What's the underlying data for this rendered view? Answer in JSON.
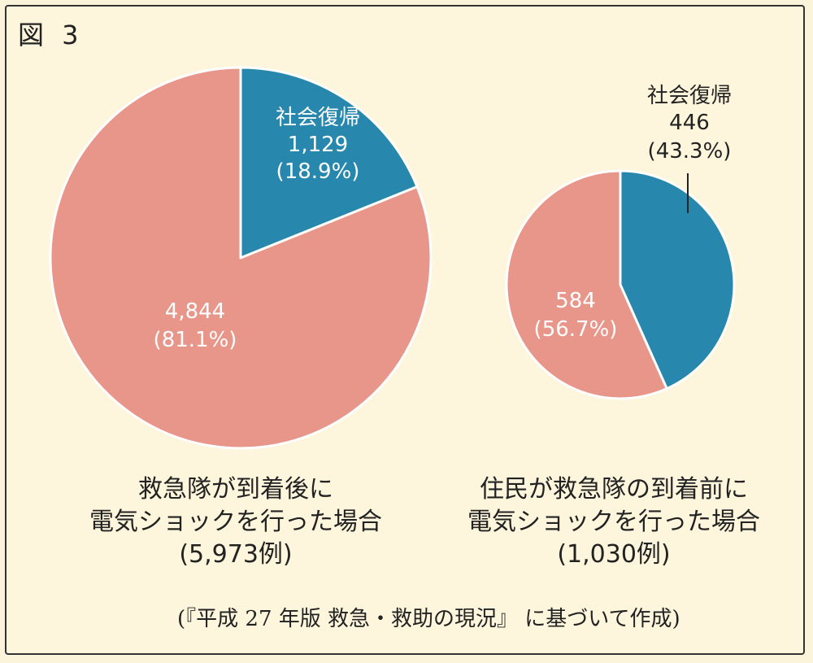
{
  "figure_label": "図 3",
  "colors": {
    "return_to_society": "#2787ad",
    "other": "#e9968a",
    "outline": "#ffffff"
  },
  "chart_data": [
    {
      "type": "pie",
      "slices": [
        {
          "label": "社会復帰",
          "value": 1129,
          "value_text": "1,129",
          "percent_text": "(18.9%)",
          "color": "#2787ad"
        },
        {
          "label": "",
          "value": 4844,
          "value_text": "4,844",
          "percent_text": "(81.1%)",
          "color": "#e9968a"
        }
      ],
      "caption": [
        "救急隊が到着後に",
        "電気ショックを行った場合",
        "(5,973例)"
      ]
    },
    {
      "type": "pie",
      "slices": [
        {
          "label": "社会復帰",
          "value": 446,
          "value_text": "446",
          "percent_text": "(43.3%)",
          "color": "#2787ad"
        },
        {
          "label": "",
          "value": 584,
          "value_text": "584",
          "percent_text": "(56.7%)",
          "color": "#e9968a"
        }
      ],
      "caption": [
        "住民が救急隊の到着前に",
        "電気ショックを行った場合",
        "(1,030例)"
      ]
    }
  ],
  "source": "(『平成 27 年版 救急・救助の現況』 に基づいて作成)"
}
